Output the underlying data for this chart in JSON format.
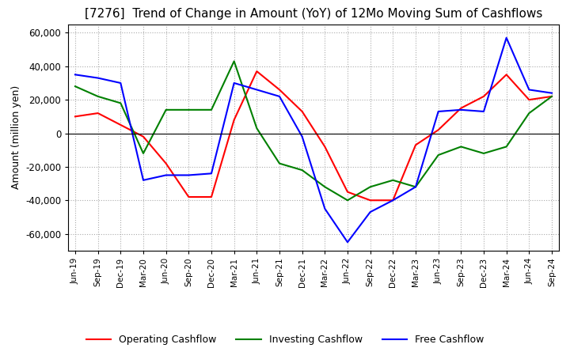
{
  "title": "[7276]  Trend of Change in Amount (YoY) of 12Mo Moving Sum of Cashflows",
  "ylabel": "Amount (million yen)",
  "ylim": [
    -70000,
    65000
  ],
  "yticks": [
    -60000,
    -40000,
    -20000,
    0,
    20000,
    40000,
    60000
  ],
  "x_labels": [
    "Jun-19",
    "Sep-19",
    "Dec-19",
    "Mar-20",
    "Jun-20",
    "Sep-20",
    "Dec-20",
    "Mar-21",
    "Jun-21",
    "Sep-21",
    "Dec-21",
    "Mar-22",
    "Jun-22",
    "Sep-22",
    "Dec-22",
    "Mar-23",
    "Jun-23",
    "Sep-23",
    "Dec-23",
    "Mar-24",
    "Jun-24",
    "Sep-24"
  ],
  "operating": [
    10000,
    12000,
    5000,
    -2000,
    -18000,
    -38000,
    -38000,
    8000,
    37000,
    26000,
    13000,
    -8000,
    -35000,
    -40000,
    -40000,
    -7000,
    2000,
    15000,
    22000,
    35000,
    20000,
    22000
  ],
  "investing": [
    28000,
    22000,
    18000,
    -12000,
    14000,
    14000,
    14000,
    43000,
    3000,
    -18000,
    -22000,
    -32000,
    -40000,
    -32000,
    -28000,
    -32000,
    -13000,
    -8000,
    -12000,
    -8000,
    12000,
    22000
  ],
  "free": [
    35000,
    33000,
    30000,
    -28000,
    -25000,
    -25000,
    -24000,
    30000,
    26000,
    22000,
    -2000,
    -45000,
    -65000,
    -47000,
    -40000,
    -32000,
    13000,
    14000,
    13000,
    57000,
    26000,
    24000
  ],
  "operating_color": "#FF0000",
  "investing_color": "#008000",
  "free_color": "#0000FF",
  "background_color": "#FFFFFF",
  "grid_color": "#AAAAAA",
  "title_fontsize": 11,
  "legend_labels": [
    "Operating Cashflow",
    "Investing Cashflow",
    "Free Cashflow"
  ]
}
